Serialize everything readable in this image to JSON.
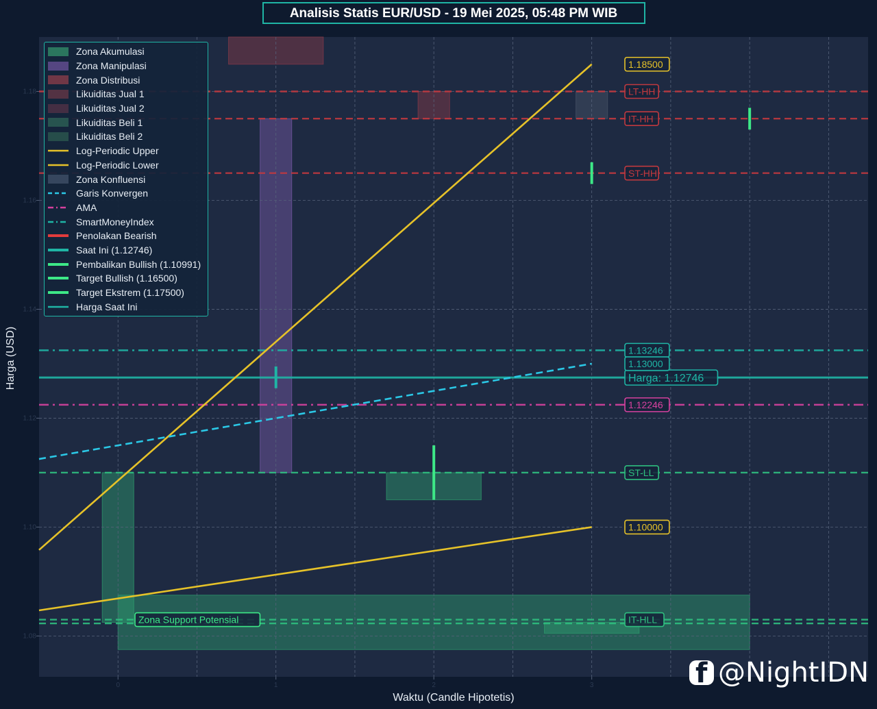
{
  "chart_data": {
    "type": "line",
    "title": "Analisis Statis EUR/USD - 19 Mei 2025, 05:48 PM WIB",
    "xlabel": "Waktu (Candle Hipotetis)",
    "ylabel": "Harga (USD)",
    "xlim": [
      -0.5,
      4.75
    ],
    "ylim": [
      1.0725,
      1.19
    ],
    "x_ticks": [
      0,
      1,
      2,
      3
    ],
    "y_ticks": [
      1.08,
      1.1,
      1.12,
      1.14,
      1.16,
      1.18
    ],
    "x_tick_labels": [
      "0",
      "1",
      "2",
      "3"
    ],
    "y_tick_labels": [
      "1.08",
      "1.10",
      "1.12",
      "1.14",
      "1.16",
      "1.18"
    ],
    "grid": true,
    "legend_position": "top-left",
    "zones": [
      {
        "kind": "accumulation",
        "x0": -0.1,
        "x1": 0.1,
        "y0": 1.0825,
        "y1": 1.11,
        "color": "#2e9e6e"
      },
      {
        "kind": "accumulation",
        "x0": 0,
        "x1": 4,
        "y0": 1.0775,
        "y1": 1.0875,
        "color": "#2e9e6e"
      },
      {
        "kind": "accumulation",
        "x0": 2.7,
        "x1": 3.3,
        "y0": 1.0805,
        "y1": 1.0825,
        "color": "#2e9e6e"
      },
      {
        "kind": "accumulation",
        "x0": 1.7,
        "x1": 2.3,
        "y0": 1.105,
        "y1": 1.11,
        "color": "#2e9e6e"
      },
      {
        "kind": "manipulation",
        "x0": 0.9,
        "x1": 1.1,
        "y0": 1.11,
        "y1": 1.175,
        "color": "#7a5aa8"
      },
      {
        "kind": "distribution",
        "x0": 0.7,
        "x1": 1.3,
        "y0": 1.185,
        "y1": 1.19,
        "color": "#8a3a48"
      },
      {
        "kind": "distribution",
        "x0": 1.9,
        "x1": 2.1,
        "y0": 1.175,
        "y1": 1.18,
        "color": "#8a3a48"
      },
      {
        "kind": "confluence",
        "x0": 2.9,
        "x1": 3.1,
        "y0": 1.175,
        "y1": 1.18,
        "color": "#4a5468"
      }
    ],
    "hlines": [
      {
        "y": 1.18,
        "style": "dashed",
        "color": "#c0393f",
        "label": "LT-HH"
      },
      {
        "y": 1.175,
        "style": "dashed",
        "color": "#c0393f",
        "label": "IT-HH"
      },
      {
        "y": 1.165,
        "style": "dashed",
        "color": "#c0393f",
        "label": "ST-HH"
      },
      {
        "y": 1.13246,
        "style": "dashdot",
        "color": "#1fb5a5",
        "label": "1.13246"
      },
      {
        "y": 1.12746,
        "style": "solid",
        "color": "#1fb5a5",
        "label": "Harga: 1.12746"
      },
      {
        "y": 1.12246,
        "style": "dashdot",
        "color": "#d6419e",
        "label": "1.12246"
      },
      {
        "y": 1.11,
        "style": "dashed",
        "color": "#2fbf7f",
        "label": "ST-LL"
      },
      {
        "y": 1.083,
        "style": "dashed",
        "color": "#2fbf7f",
        "label": "IT-HLL"
      },
      {
        "y": 1.0823,
        "style": "dashed",
        "color": "#2fbf7f",
        "label": ""
      }
    ],
    "series": [
      {
        "name": "Log-Periodic Upper",
        "style": "solid",
        "color": "#e6c229",
        "x": [
          -0.5,
          3
        ],
        "y": [
          1.0958,
          1.185
        ]
      },
      {
        "name": "Log-Periodic Lower",
        "style": "solid",
        "color": "#e6c229",
        "x": [
          -0.5,
          3
        ],
        "y": [
          1.0847,
          1.1
        ]
      },
      {
        "name": "Garis Konvergen",
        "style": "dashed",
        "color": "#2bc8e6",
        "x": [
          -0.5,
          3
        ],
        "y": [
          1.1125,
          1.13
        ]
      }
    ],
    "markers": [
      {
        "kind": "current",
        "x": 1,
        "y0": 1.1255,
        "y1": 1.1295,
        "color": "#1fb5a5"
      },
      {
        "kind": "bullish",
        "x": 2,
        "y0": 1.105,
        "y1": 1.115,
        "color": "#3de887"
      },
      {
        "kind": "bullish",
        "x": 3,
        "y0": 1.163,
        "y1": 1.167,
        "color": "#3de887"
      },
      {
        "kind": "bullish",
        "x": 4,
        "y0": 1.173,
        "y1": 1.177,
        "color": "#3de887"
      }
    ],
    "annotations": [
      {
        "text": "1.18500",
        "x": 3.4,
        "y": 1.185,
        "color": "#e6c229"
      },
      {
        "text": "1.13000",
        "x": 3.4,
        "y": 1.13,
        "color": "#1fb5a5"
      },
      {
        "text": "1.10000",
        "x": 3.4,
        "y": 1.1,
        "color": "#e6c229"
      },
      {
        "text": "Zona Support Potensial",
        "x": 0.15,
        "y": 1.083,
        "color": "#3de887"
      }
    ]
  },
  "legend": [
    {
      "label": "Zona Akumulasi",
      "type": "patch",
      "color": "#2e7f62"
    },
    {
      "label": "Zona Manipulasi",
      "type": "patch",
      "color": "#5d4a8a"
    },
    {
      "label": "Zona Distribusi",
      "type": "patch",
      "color": "#7a3a48"
    },
    {
      "label": "Likuiditas Jual 1",
      "type": "patch",
      "color": "#5a3444"
    },
    {
      "label": "Likuiditas Jual 2",
      "type": "patch",
      "color": "#4a3044"
    },
    {
      "label": "Likuiditas Beli 1",
      "type": "patch",
      "color": "#2a5a52"
    },
    {
      "label": "Likuiditas Beli 2",
      "type": "patch",
      "color": "#28524c"
    },
    {
      "label": "Log-Periodic Upper",
      "type": "line",
      "color": "#e6c229",
      "style": "solid"
    },
    {
      "label": "Log-Periodic Lower",
      "type": "line",
      "color": "#e6c229",
      "style": "solid"
    },
    {
      "label": "Zona Konfluensi",
      "type": "patch",
      "color": "#3a4a62"
    },
    {
      "label": "Garis Konvergen",
      "type": "line",
      "color": "#2bc8e6",
      "style": "dashed"
    },
    {
      "label": "AMA",
      "type": "line",
      "color": "#d6419e",
      "style": "dashdot"
    },
    {
      "label": "SmartMoneyIndex",
      "type": "line",
      "color": "#1fb5a5",
      "style": "dashdot"
    },
    {
      "label": "Penolakan Bearish",
      "type": "thick",
      "color": "#e23c3c"
    },
    {
      "label": "Saat Ini (1.12746)",
      "type": "thick",
      "color": "#1fb5a5"
    },
    {
      "label": "Pembalikan Bullish (1.10991)",
      "type": "thick",
      "color": "#3de887"
    },
    {
      "label": "Target Bullish (1.16500)",
      "type": "thick",
      "color": "#3de887"
    },
    {
      "label": "Target Ekstrem (1.17500)",
      "type": "thick",
      "color": "#3de887"
    },
    {
      "label": "Harga Saat Ini",
      "type": "line",
      "color": "#1fb5a5",
      "style": "solid"
    }
  ],
  "watermark": {
    "icon": "facebook-icon",
    "text": "@NightIDN"
  }
}
